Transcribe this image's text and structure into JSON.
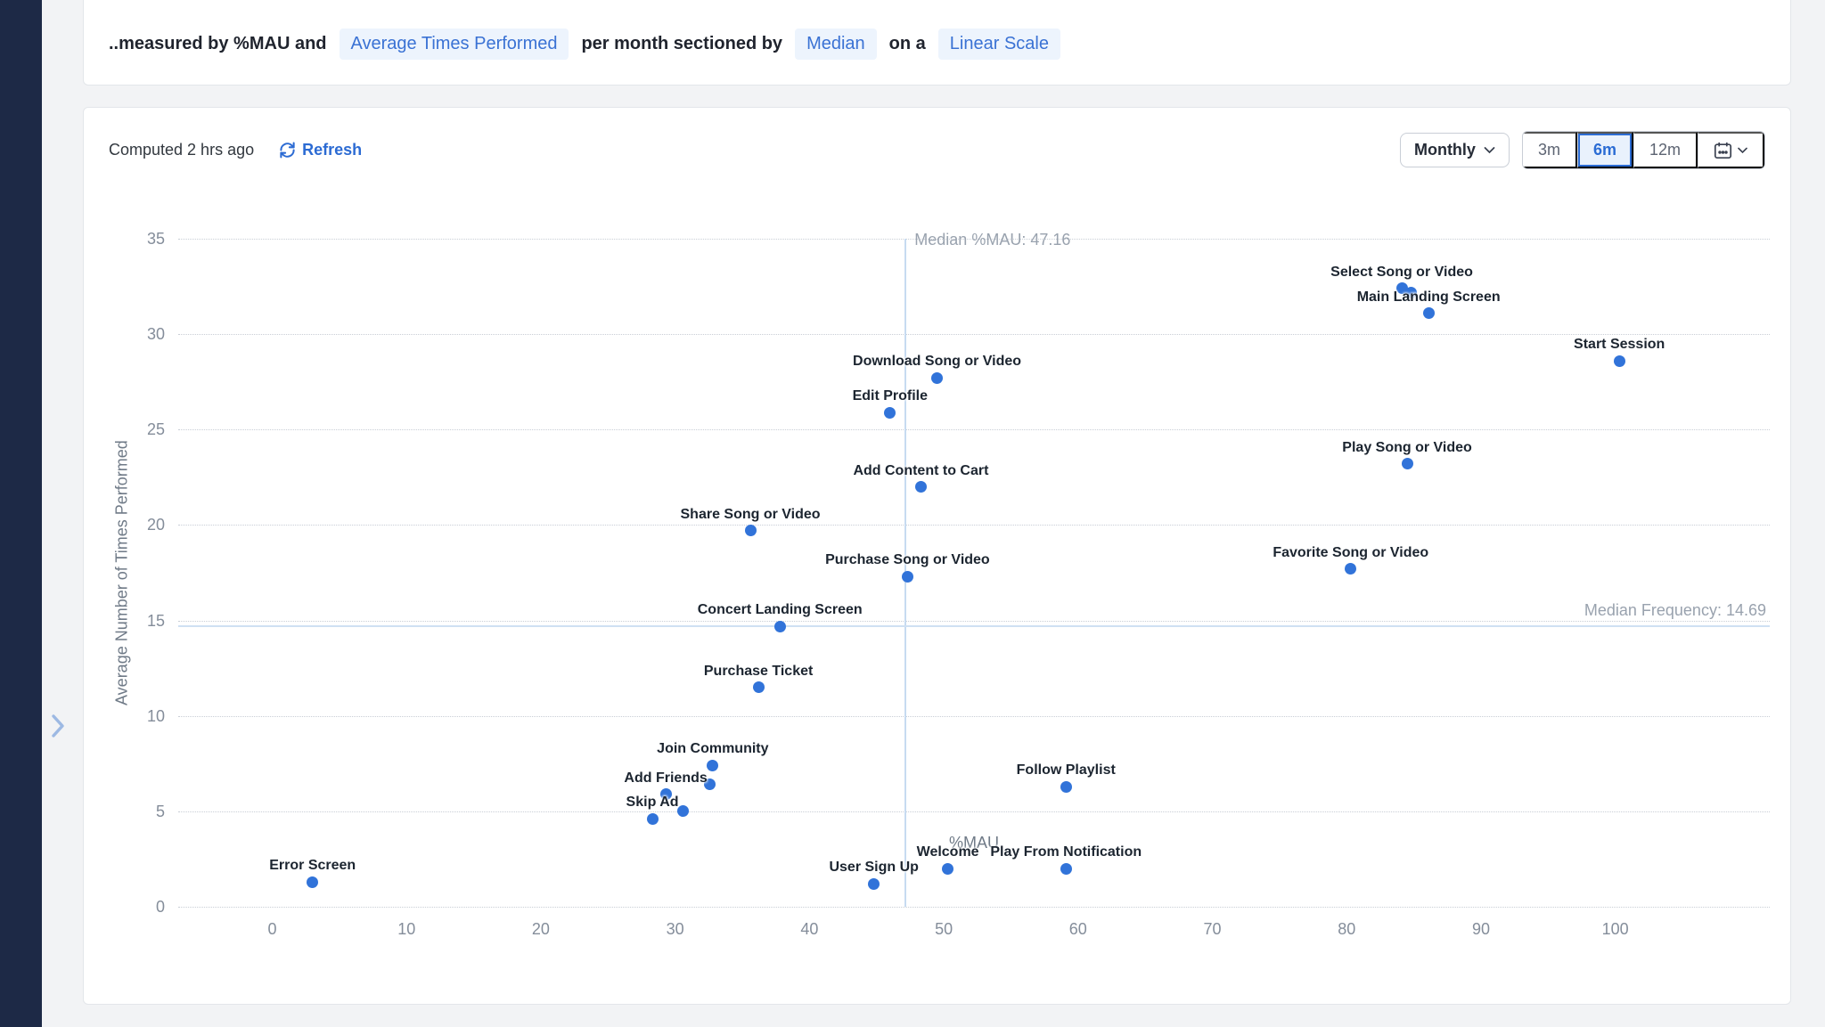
{
  "top_bar": {
    "prefix": "..measured by %MAU and",
    "metric_chip": "Average Times Performed",
    "mid1": "per month sectioned by",
    "section_chip": "Median",
    "mid2": "on a",
    "scale_chip": "Linear Scale"
  },
  "panel": {
    "computed": "Computed 2 hrs ago",
    "refresh_label": "Refresh",
    "interval_label": "Monthly",
    "ranges": [
      "3m",
      "6m",
      "12m"
    ],
    "selected_range": "6m",
    "icons": [
      "refresh-icon",
      "chevron-down-icon",
      "calendar-icon"
    ]
  },
  "sidebar": {
    "collapse_icon": "chevron-right-icon"
  },
  "colors": {
    "accent_blue": "#2b6cd4",
    "dot_blue": "#3173d9",
    "chip_bg": "#edf4fd",
    "chip_text": "#3a72d4",
    "sidebar_navy": "#1d2946",
    "median_line_v": "#c7dbf1",
    "median_line_h": "#cfe0f3",
    "gridline": "#c9ced6",
    "axis_text": "#848d9a"
  },
  "chart_data": {
    "type": "scatter",
    "xlabel": "%MAU",
    "ylabel": "Average Number of Times Performed",
    "xlim": [
      -7,
      111.5
    ],
    "ylim": [
      0,
      35
    ],
    "x_ticks": [
      0,
      10,
      20,
      30,
      40,
      50,
      60,
      70,
      80,
      90,
      100
    ],
    "y_ticks": [
      0,
      5,
      10,
      15,
      20,
      25,
      30,
      35
    ],
    "grid": "dotted horizontal",
    "median_x": {
      "value": 47.16,
      "label": "Median %MAU: 47.16"
    },
    "median_y": {
      "value": 14.69,
      "label": "Median Frequency: 14.69"
    },
    "points": [
      {
        "label": "Select Song or Video",
        "x": 84.1,
        "y": 32.4
      },
      {
        "label": "",
        "x": 84.8,
        "y": 32.2
      },
      {
        "label": "Main Landing Screen",
        "x": 86.1,
        "y": 31.1
      },
      {
        "label": "Start Session",
        "x": 100.3,
        "y": 28.6
      },
      {
        "label": "Download Song or Video",
        "x": 49.5,
        "y": 27.7
      },
      {
        "label": "Edit Profile",
        "x": 46.0,
        "y": 25.9
      },
      {
        "label": "Play Song or Video",
        "x": 84.5,
        "y": 23.2
      },
      {
        "label": "Add Content to Cart",
        "x": 48.3,
        "y": 22.0
      },
      {
        "label": "Share Song or Video",
        "x": 35.6,
        "y": 19.7
      },
      {
        "label": "Favorite Song or Video",
        "x": 80.3,
        "y": 17.7
      },
      {
        "label": "Purchase Song or Video",
        "x": 47.3,
        "y": 17.3
      },
      {
        "label": "Concert Landing Screen",
        "x": 37.8,
        "y": 14.7
      },
      {
        "label": "Purchase Ticket",
        "x": 36.2,
        "y": 11.5
      },
      {
        "label": "Join Community",
        "x": 32.8,
        "y": 7.4
      },
      {
        "label": "",
        "x": 32.6,
        "y": 6.4
      },
      {
        "label": "Add Friends",
        "x": 29.3,
        "y": 5.9
      },
      {
        "label": "",
        "x": 30.6,
        "y": 5.0
      },
      {
        "label": "Skip Ad",
        "x": 28.3,
        "y": 4.6
      },
      {
        "label": "Follow Playlist",
        "x": 59.1,
        "y": 6.3
      },
      {
        "label": "Welcome",
        "x": 50.3,
        "y": 2.0
      },
      {
        "label": "Play From Notification",
        "x": 59.1,
        "y": 2.0
      },
      {
        "label": "User Sign Up",
        "x": 44.8,
        "y": 1.2
      },
      {
        "label": "Error Screen",
        "x": 3.0,
        "y": 1.3
      }
    ]
  }
}
